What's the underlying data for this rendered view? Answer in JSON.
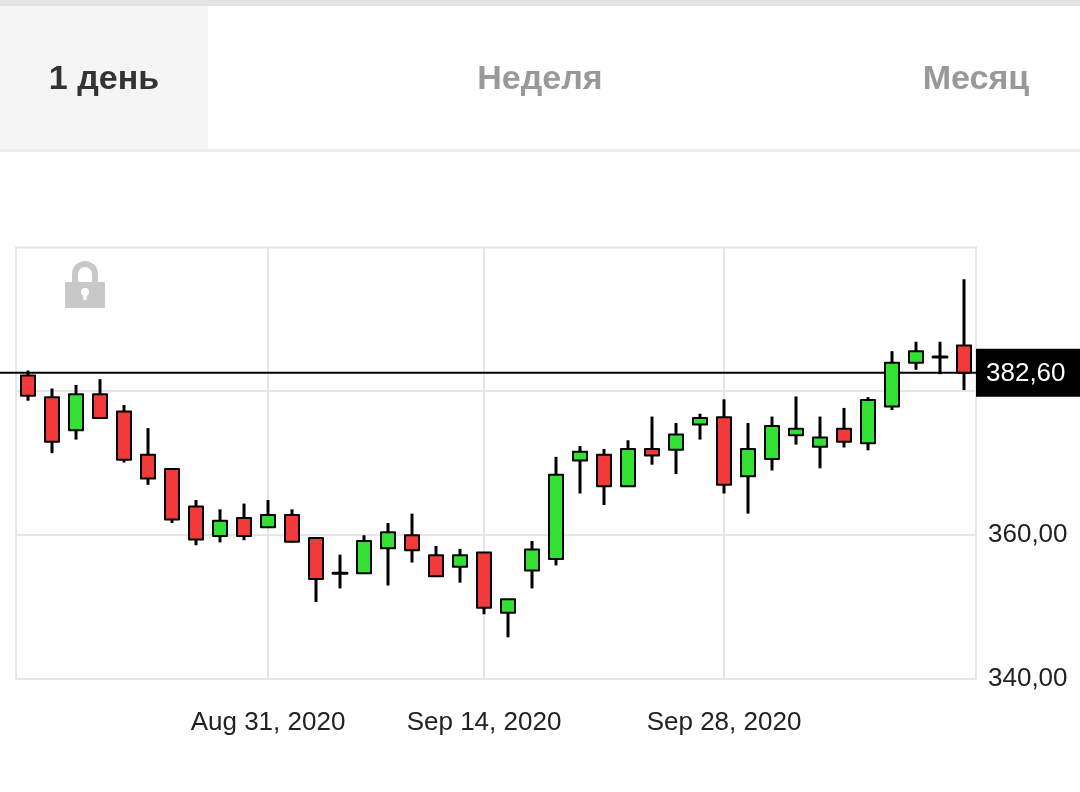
{
  "chart_data": {
    "type": "candlestick",
    "categories": [
      null,
      null,
      null,
      null,
      null,
      null,
      null,
      null,
      null,
      null,
      "Aug 31, 2020",
      null,
      null,
      null,
      null,
      null,
      null,
      null,
      null,
      "Sep 14, 2020",
      null,
      null,
      null,
      null,
      null,
      null,
      null,
      null,
      null,
      "Sep 28, 2020",
      null,
      null,
      null,
      null,
      null,
      null,
      null,
      null,
      null,
      null
    ],
    "ohlc": [
      [
        382.2,
        382.9,
        378.7,
        379.4
      ],
      [
        379.2,
        380.4,
        371.4,
        373.0
      ],
      [
        374.6,
        380.9,
        373.3,
        379.6
      ],
      [
        379.6,
        381.7,
        376.2,
        376.3
      ],
      [
        377.2,
        378.1,
        370.1,
        370.5
      ],
      [
        371.2,
        374.9,
        367.0,
        367.9
      ],
      [
        369.2,
        369.2,
        361.7,
        362.2
      ],
      [
        364.0,
        364.9,
        358.6,
        359.4
      ],
      [
        359.9,
        363.6,
        359.0,
        362.0
      ],
      [
        362.4,
        364.4,
        359.3,
        359.9
      ],
      [
        361.1,
        364.9,
        361.0,
        362.8
      ],
      [
        362.8,
        363.6,
        359.0,
        359.1
      ],
      [
        359.6,
        359.6,
        350.7,
        353.9
      ],
      [
        354.7,
        357.3,
        352.6,
        354.7
      ],
      [
        354.7,
        360.0,
        354.6,
        359.2
      ],
      [
        358.2,
        361.7,
        353.0,
        360.4
      ],
      [
        360.0,
        363.0,
        356.2,
        357.9
      ],
      [
        357.2,
        358.5,
        354.2,
        354.3
      ],
      [
        355.6,
        358.1,
        353.4,
        357.2
      ],
      [
        357.6,
        357.6,
        349.0,
        349.9
      ],
      [
        349.2,
        351.1,
        345.8,
        351.1
      ],
      [
        355.1,
        359.2,
        352.6,
        358.0
      ],
      [
        356.7,
        370.9,
        355.8,
        368.4
      ],
      [
        370.4,
        372.4,
        365.8,
        371.6
      ],
      [
        371.2,
        372.0,
        364.2,
        366.8
      ],
      [
        366.8,
        373.2,
        366.7,
        372.0
      ],
      [
        372.0,
        376.5,
        369.8,
        371.1
      ],
      [
        371.9,
        375.6,
        368.5,
        374.0
      ],
      [
        375.4,
        376.9,
        373.3,
        376.3
      ],
      [
        376.4,
        378.9,
        365.8,
        367.0
      ],
      [
        368.2,
        375.6,
        363.0,
        372.0
      ],
      [
        370.6,
        376.5,
        369.0,
        375.2
      ],
      [
        373.9,
        379.3,
        372.6,
        374.8
      ],
      [
        372.3,
        376.5,
        369.3,
        373.6
      ],
      [
        374.8,
        377.7,
        372.2,
        373.0
      ],
      [
        372.8,
        379.2,
        371.8,
        378.8
      ],
      [
        377.9,
        385.6,
        377.4,
        384.0
      ],
      [
        384.0,
        386.9,
        383.0,
        385.6
      ],
      [
        384.8,
        386.9,
        382.4,
        384.8
      ],
      [
        386.4,
        395.6,
        380.2,
        382.6
      ]
    ],
    "colors": [
      "#f23a3a",
      "#f23a3a",
      "#33e033",
      "#f23a3a",
      "#f23a3a",
      "#f23a3a",
      "#f23a3a",
      "#f23a3a",
      "#33e033",
      "#f23a3a",
      "#33e033",
      "#f23a3a",
      "#f23a3a",
      "#000000",
      "#33e033",
      "#33e033",
      "#f23a3a",
      "#f23a3a",
      "#33e033",
      "#f23a3a",
      "#33e033",
      "#33e033",
      "#33e033",
      "#33e033",
      "#f23a3a",
      "#33e033",
      "#f23a3a",
      "#33e033",
      "#33e033",
      "#f23a3a",
      "#33e033",
      "#33e033",
      "#33e033",
      "#33e033",
      "#f23a3a",
      "#33e033",
      "#33e033",
      "#33e033",
      "#000000",
      "#f23a3a"
    ],
    "ylim": [
      340,
      400
    ],
    "yticks": [
      {
        "value": 340,
        "label": "340,00"
      },
      {
        "value": 360,
        "label": "360,00"
      },
      {
        "value": 380,
        "label": null
      }
    ],
    "grid": true,
    "ref_lines": [
      {
        "axis": "y",
        "value": 382.6,
        "label": "382,60",
        "color": "#000000"
      }
    ],
    "annotations": [
      "1 день",
      "Неделя",
      "Месяц"
    ]
  }
}
